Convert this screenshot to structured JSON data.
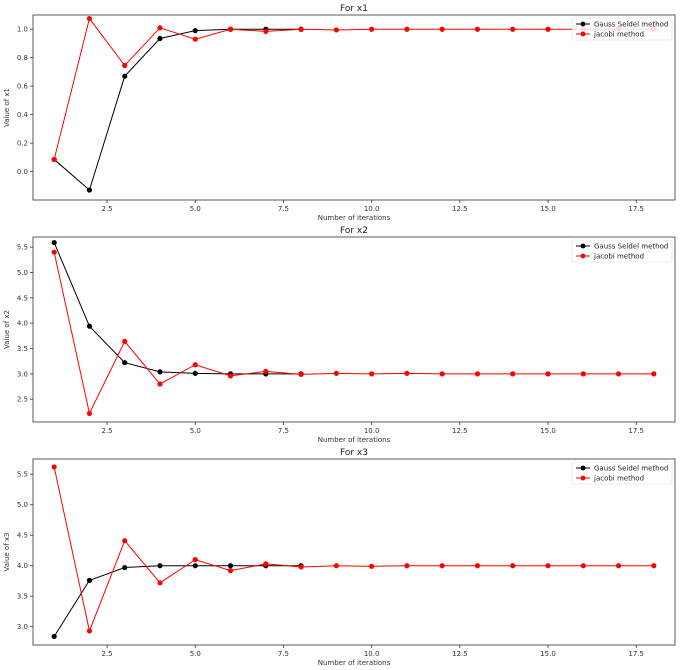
{
  "colors": {
    "gauss": "#000000",
    "jacobi": "#ff0000"
  },
  "chart_data": [
    {
      "type": "line",
      "title": "For x1",
      "xlabel": "Number of iterations",
      "ylabel": "Value of x1",
      "xlim": [
        0.4,
        18.6
      ],
      "ylim": [
        -0.2,
        1.1
      ],
      "xticks": [
        2.5,
        5.0,
        7.5,
        10.0,
        12.5,
        15.0,
        17.5
      ],
      "xtick_labels": [
        "2.5",
        "5.0",
        "7.5",
        "10.0",
        "12.5",
        "15.0",
        "17.5"
      ],
      "yticks": [
        0.0,
        0.2,
        0.4,
        0.6,
        0.8,
        1.0
      ],
      "ytick_labels": [
        "0.0",
        "0.2",
        "0.4",
        "0.6",
        "0.8",
        "1.0"
      ],
      "legend": "top-right",
      "grid": false,
      "series": [
        {
          "name": "Gauss Seidel method",
          "color": "#000000",
          "x": [
            1,
            2,
            3,
            4,
            5,
            6,
            7,
            8
          ],
          "y": [
            0.085,
            -0.13,
            0.67,
            0.935,
            0.99,
            1.0,
            1.0,
            1.0
          ]
        },
        {
          "name": "jacobi method",
          "color": "#ff0000",
          "x": [
            1,
            2,
            3,
            4,
            5,
            6,
            7,
            8,
            9,
            10,
            11,
            12,
            13,
            14,
            15,
            16,
            17,
            18
          ],
          "y": [
            0.085,
            1.075,
            0.745,
            1.01,
            0.93,
            1.0,
            0.985,
            1.0,
            0.995,
            1.0,
            1.0,
            1.0,
            1.0,
            1.0,
            1.0,
            1.0,
            1.0,
            1.0
          ]
        }
      ]
    },
    {
      "type": "line",
      "title": "For x2",
      "xlabel": "Number of iterations",
      "ylabel": "Value of x2",
      "xlim": [
        0.4,
        18.6
      ],
      "ylim": [
        2.05,
        5.7
      ],
      "xticks": [
        2.5,
        5.0,
        7.5,
        10.0,
        12.5,
        15.0,
        17.5
      ],
      "xtick_labels": [
        "2.5",
        "5.0",
        "7.5",
        "10.0",
        "12.5",
        "15.0",
        "17.5"
      ],
      "yticks": [
        2.5,
        3.0,
        3.5,
        4.0,
        4.5,
        5.0,
        5.5
      ],
      "ytick_labels": [
        "2.5",
        "3.0",
        "3.5",
        "4.0",
        "4.5",
        "5.0",
        "5.5"
      ],
      "legend": "top-right",
      "grid": false,
      "series": [
        {
          "name": "Gauss Seidel method",
          "color": "#000000",
          "x": [
            1,
            2,
            3,
            4,
            5,
            6,
            7,
            8
          ],
          "y": [
            5.59,
            3.94,
            3.22,
            3.04,
            3.01,
            3.0,
            3.0,
            3.0
          ]
        },
        {
          "name": "jacobi method",
          "color": "#ff0000",
          "x": [
            1,
            2,
            3,
            4,
            5,
            6,
            7,
            8,
            9,
            10,
            11,
            12,
            13,
            14,
            15,
            16,
            17,
            18
          ],
          "y": [
            5.4,
            2.22,
            3.64,
            2.8,
            3.18,
            2.96,
            3.05,
            2.99,
            3.01,
            3.0,
            3.01,
            3.0,
            3.0,
            3.0,
            3.0,
            3.0,
            3.0,
            3.0
          ]
        }
      ]
    },
    {
      "type": "line",
      "title": "For x3",
      "xlabel": "Number of iterations",
      "ylabel": "Value of x3",
      "xlim": [
        0.4,
        18.6
      ],
      "ylim": [
        2.7,
        5.75
      ],
      "xticks": [
        2.5,
        5.0,
        7.5,
        10.0,
        12.5,
        15.0,
        17.5
      ],
      "xtick_labels": [
        "2.5",
        "5.0",
        "7.5",
        "10.0",
        "12.5",
        "15.0",
        "17.5"
      ],
      "yticks": [
        3.0,
        3.5,
        4.0,
        4.5,
        5.0,
        5.5
      ],
      "ytick_labels": [
        "3.0",
        "3.5",
        "4.0",
        "4.5",
        "5.0",
        "5.5"
      ],
      "legend": "top-right",
      "grid": false,
      "series": [
        {
          "name": "Gauss Seidel method",
          "color": "#000000",
          "x": [
            1,
            2,
            3,
            4,
            5,
            6,
            7,
            8
          ],
          "y": [
            2.84,
            3.76,
            3.97,
            4.0,
            4.0,
            4.0,
            4.0,
            4.0
          ]
        },
        {
          "name": "jacobi method",
          "color": "#ff0000",
          "x": [
            1,
            2,
            3,
            4,
            5,
            6,
            7,
            8,
            9,
            10,
            11,
            12,
            13,
            14,
            15,
            16,
            17,
            18
          ],
          "y": [
            5.62,
            2.93,
            4.41,
            3.72,
            4.1,
            3.92,
            4.03,
            3.98,
            4.0,
            3.99,
            4.0,
            4.0,
            4.0,
            4.0,
            4.0,
            4.0,
            4.0,
            4.0
          ]
        }
      ]
    }
  ]
}
